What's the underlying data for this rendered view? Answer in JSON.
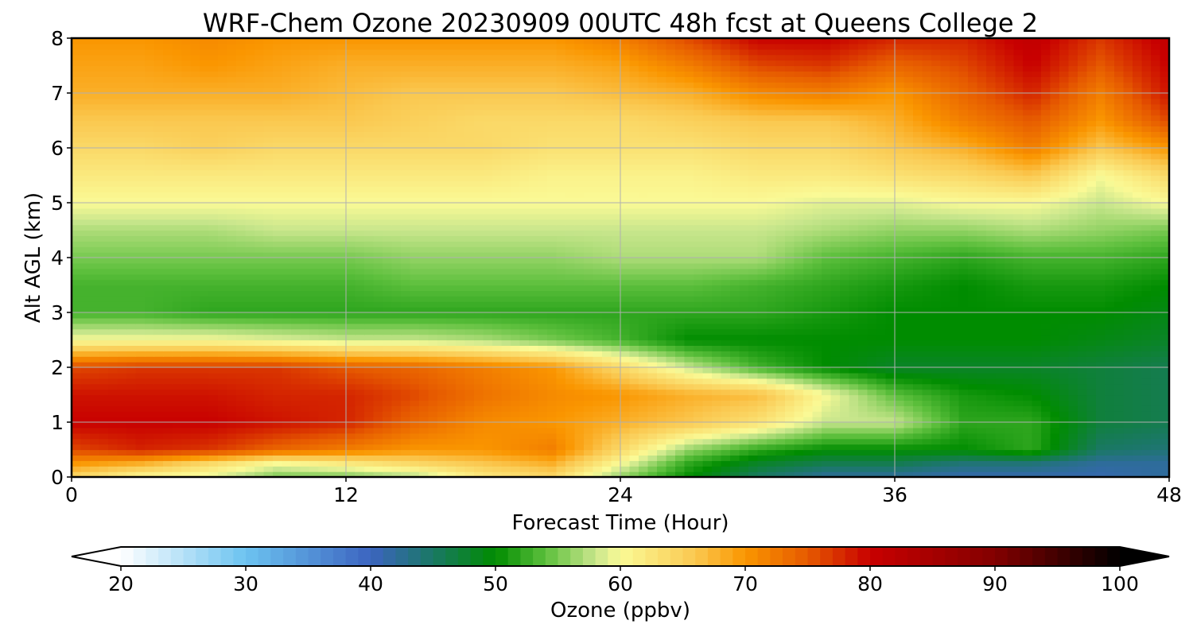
{
  "chart_data": {
    "type": "heatmap",
    "title": "WRF-Chem Ozone  20230909 00UTC 48h fcst at Queens College 2",
    "xlabel": "Forecast Time (Hour)",
    "ylabel": "Alt AGL (km)",
    "xlim": [
      0,
      48
    ],
    "ylim": [
      0,
      8
    ],
    "x_ticks": [
      "0",
      "12",
      "24",
      "36",
      "48"
    ],
    "y_ticks": [
      "0",
      "1",
      "2",
      "3",
      "4",
      "5",
      "6",
      "7",
      "8"
    ],
    "grid": true,
    "x": [
      0,
      3,
      6,
      9,
      12,
      15,
      18,
      21,
      24,
      27,
      30,
      33,
      36,
      39,
      42,
      45,
      48
    ],
    "y": [
      0,
      0.25,
      0.5,
      1,
      1.5,
      2,
      2.5,
      3,
      3.5,
      4,
      4.5,
      5,
      5.5,
      6,
      6.5,
      7,
      7.5,
      8
    ],
    "z_rows_ppbv": [
      [
        64,
        60,
        59,
        55,
        55,
        57,
        62,
        64,
        56,
        50,
        45,
        42,
        42,
        41,
        41,
        41,
        42
      ],
      [
        70,
        68,
        64,
        60,
        62,
        64,
        66,
        68,
        60,
        52,
        48,
        46,
        46,
        44,
        44,
        42,
        42
      ],
      [
        76,
        78,
        77,
        74,
        72,
        70,
        70,
        72,
        64,
        56,
        52,
        50,
        50,
        50,
        52,
        45,
        44
      ],
      [
        80,
        80,
        80,
        79,
        78,
        74,
        71,
        70,
        68,
        66,
        63,
        58,
        58,
        52,
        52,
        47,
        46
      ],
      [
        79,
        79,
        79,
        78,
        78,
        76,
        73,
        71,
        70,
        68,
        67,
        60,
        54,
        51,
        50,
        47,
        46
      ],
      [
        76,
        77,
        77,
        77,
        75,
        74,
        72,
        70,
        64,
        58,
        53,
        50,
        48,
        48,
        48,
        47,
        46
      ],
      [
        60,
        60,
        60,
        59,
        58,
        58,
        57,
        55,
        53,
        50,
        50,
        50,
        50,
        50,
        50,
        49,
        48
      ],
      [
        53,
        53,
        52,
        52,
        52,
        52,
        52,
        52,
        52,
        52,
        52,
        51,
        50,
        50,
        50,
        50,
        49
      ],
      [
        53,
        53,
        53,
        53,
        53,
        54,
        54,
        54,
        54,
        54,
        53,
        52,
        51,
        50,
        51,
        51,
        50
      ],
      [
        55,
        55,
        55,
        55,
        55,
        56,
        56,
        56,
        57,
        57,
        57,
        54,
        53,
        52,
        53,
        53,
        52
      ],
      [
        57,
        57,
        57,
        58,
        58,
        58,
        58,
        58,
        58,
        58,
        58,
        57,
        56,
        56,
        57,
        56,
        55
      ],
      [
        60,
        60,
        60,
        60,
        60,
        60,
        60,
        60,
        60,
        60,
        60,
        59,
        59,
        60,
        60,
        58,
        60
      ],
      [
        62,
        62,
        62,
        62,
        62,
        62,
        62,
        61,
        61,
        61,
        62,
        62,
        63,
        64,
        66,
        60,
        64
      ],
      [
        64,
        64,
        65,
        64,
        64,
        64,
        64,
        63,
        63,
        63,
        64,
        64,
        66,
        68,
        72,
        66,
        70
      ],
      [
        66,
        66,
        66,
        66,
        66,
        65,
        64,
        64,
        64,
        65,
        66,
        66,
        68,
        72,
        75,
        70,
        76
      ],
      [
        68,
        68,
        68,
        68,
        67,
        66,
        66,
        66,
        67,
        68,
        71,
        72,
        70,
        74,
        78,
        72,
        79
      ],
      [
        69,
        69,
        70,
        69,
        68,
        68,
        68,
        68,
        69,
        72,
        76,
        77,
        74,
        76,
        80,
        75,
        80
      ],
      [
        70,
        70,
        71,
        70,
        70,
        70,
        70,
        70,
        72,
        76,
        80,
        80,
        78,
        78,
        81,
        77,
        81
      ]
    ],
    "colorbar": {
      "label": "Ozone  (ppbv)",
      "min": 20,
      "max": 100,
      "ticks": [
        "20",
        "30",
        "40",
        "50",
        "60",
        "70",
        "80",
        "90",
        "100"
      ],
      "extend": "both",
      "stops": [
        {
          "v": 20,
          "c": "#ffffff"
        },
        {
          "v": 30,
          "c": "#6cc3f0"
        },
        {
          "v": 40,
          "c": "#3c64c0"
        },
        {
          "v": 45,
          "c": "#1a7864"
        },
        {
          "v": 50,
          "c": "#008c00"
        },
        {
          "v": 54,
          "c": "#5cbf3c"
        },
        {
          "v": 58,
          "c": "#c8e68c"
        },
        {
          "v": 60,
          "c": "#fafa96"
        },
        {
          "v": 66,
          "c": "#fac850"
        },
        {
          "v": 70,
          "c": "#fa9600"
        },
        {
          "v": 75,
          "c": "#e65a00"
        },
        {
          "v": 80,
          "c": "#c80000"
        },
        {
          "v": 90,
          "c": "#820000"
        },
        {
          "v": 100,
          "c": "#000000"
        }
      ]
    }
  }
}
